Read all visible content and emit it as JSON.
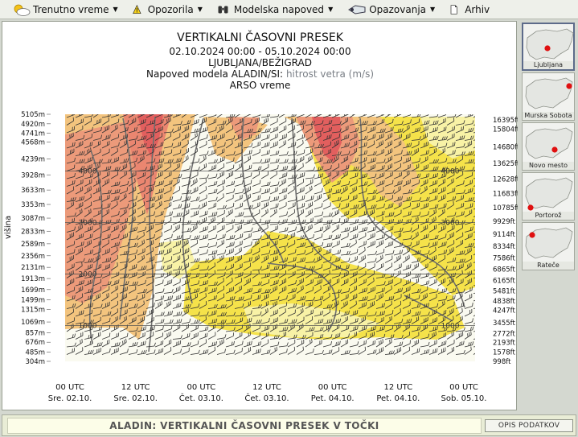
{
  "menu": {
    "items": [
      {
        "label": "Trenutno vreme",
        "icon": "sun-cloud-icon",
        "has_dropdown": true
      },
      {
        "label": "Opozorila",
        "icon": "warning-icon",
        "has_dropdown": true
      },
      {
        "label": "Modelska napoved",
        "icon": "binoculars-icon",
        "has_dropdown": true
      },
      {
        "label": "Opazovanja",
        "icon": "observation-icon",
        "has_dropdown": true
      },
      {
        "label": "Arhiv",
        "icon": "document-icon",
        "has_dropdown": false
      }
    ]
  },
  "chart_header": {
    "title": "VERTIKALNI ČASOVNI PRESEK",
    "period": "02.10.2024 00:00 - 05.10.2024 00:00",
    "location": "LJUBLJANA/BEŽIGRAD",
    "model_prefix": "Napoved modela ALADIN/SI:",
    "parameter": "hitrost vetra (m/s)",
    "source": "ARSO vreme"
  },
  "chart_data": {
    "type": "heatmap",
    "title": "VERTIKALNI ČASOVNI PRESEK",
    "ylabel": "višina",
    "y_left_ticks": [
      "5105m",
      "4920m",
      "4741m",
      "4568m",
      "4239m",
      "3928m",
      "3633m",
      "3353m",
      "3087m",
      "2833m",
      "2589m",
      "2356m",
      "2131m",
      "1913m",
      "1699m",
      "1499m",
      "1315m",
      "1069m",
      "857m",
      "676m",
      "485m",
      "304m"
    ],
    "y_right_ticks": [
      "16395ft",
      "15804ft",
      "14680ft",
      "13625ft",
      "12628ft",
      "11683ft",
      "10785ft",
      "9929ft",
      "9114ft",
      "8334ft",
      "7586ft",
      "6865ft",
      "6165ft",
      "5481ft",
      "4838ft",
      "4247ft",
      "3455ft",
      "2772ft",
      "2193ft",
      "1578ft",
      "998ft"
    ],
    "x_ticks": [
      {
        "time": "00 UTC",
        "day": "Sre. 02.10."
      },
      {
        "time": "12 UTC",
        "day": "Sre. 02.10."
      },
      {
        "time": "00 UTC",
        "day": "Čet. 03.10."
      },
      {
        "time": "12 UTC",
        "day": "Čet. 03.10."
      },
      {
        "time": "00 UTC",
        "day": "Pet. 04.10."
      },
      {
        "time": "12 UTC",
        "day": "Pet. 04.10."
      },
      {
        "time": "00 UTC",
        "day": "Sob. 05.10."
      }
    ],
    "height_lines": [
      {
        "value": "4000",
        "left": true,
        "right": true
      },
      {
        "value": "3000",
        "left": true,
        "right": true
      },
      {
        "value": "2000",
        "left": true,
        "right": false
      },
      {
        "value": "1000",
        "left": true,
        "right": true
      }
    ],
    "colors": {
      "calm": "#fafaf0",
      "light": "#f8f2a6",
      "moderate": "#f5e24a",
      "fresh": "#f3c47e",
      "strong": "#ec9a7a",
      "very_strong": "#e4575a"
    }
  },
  "stations": [
    {
      "name": "Ljubljana",
      "active": true
    },
    {
      "name": "Murska Sobota",
      "active": false
    },
    {
      "name": "Novo mesto",
      "active": false
    },
    {
      "name": "Portorož",
      "active": false
    },
    {
      "name": "Rateče",
      "active": false
    }
  ],
  "footer": {
    "title": "ALADIN: VERTIKALNI ČASOVNI PRESEK V TOČKI",
    "button": "OPIS PODATKOV"
  }
}
